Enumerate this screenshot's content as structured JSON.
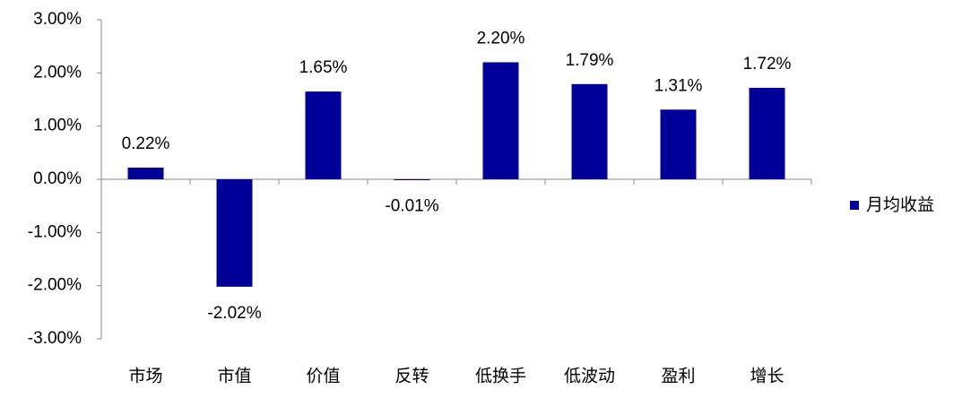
{
  "chart_data": {
    "type": "bar",
    "categories": [
      "市场",
      "市值",
      "价值",
      "反转",
      "低换手",
      "低波动",
      "盈利",
      "增长"
    ],
    "series": [
      {
        "name": "月均收益",
        "color": "#000099",
        "values": [
          0.22,
          -2.02,
          1.65,
          -0.01,
          2.2,
          1.79,
          1.31,
          1.72
        ],
        "value_labels": [
          "0.22%",
          "-2.02%",
          "1.65%",
          "-0.01%",
          "2.20%",
          "1.79%",
          "1.31%",
          "1.72%"
        ]
      }
    ],
    "ylim": [
      -3,
      3
    ],
    "yticks": [
      {
        "value": -3,
        "label": "-3.00%"
      },
      {
        "value": -2,
        "label": "-2.00%"
      },
      {
        "value": -1,
        "label": "-1.00%"
      },
      {
        "value": 0,
        "label": "0.00%"
      },
      {
        "value": 1,
        "label": "1.00%"
      },
      {
        "value": 2,
        "label": "2.00%"
      },
      {
        "value": 3,
        "label": "3.00%"
      }
    ],
    "legend": "right"
  }
}
